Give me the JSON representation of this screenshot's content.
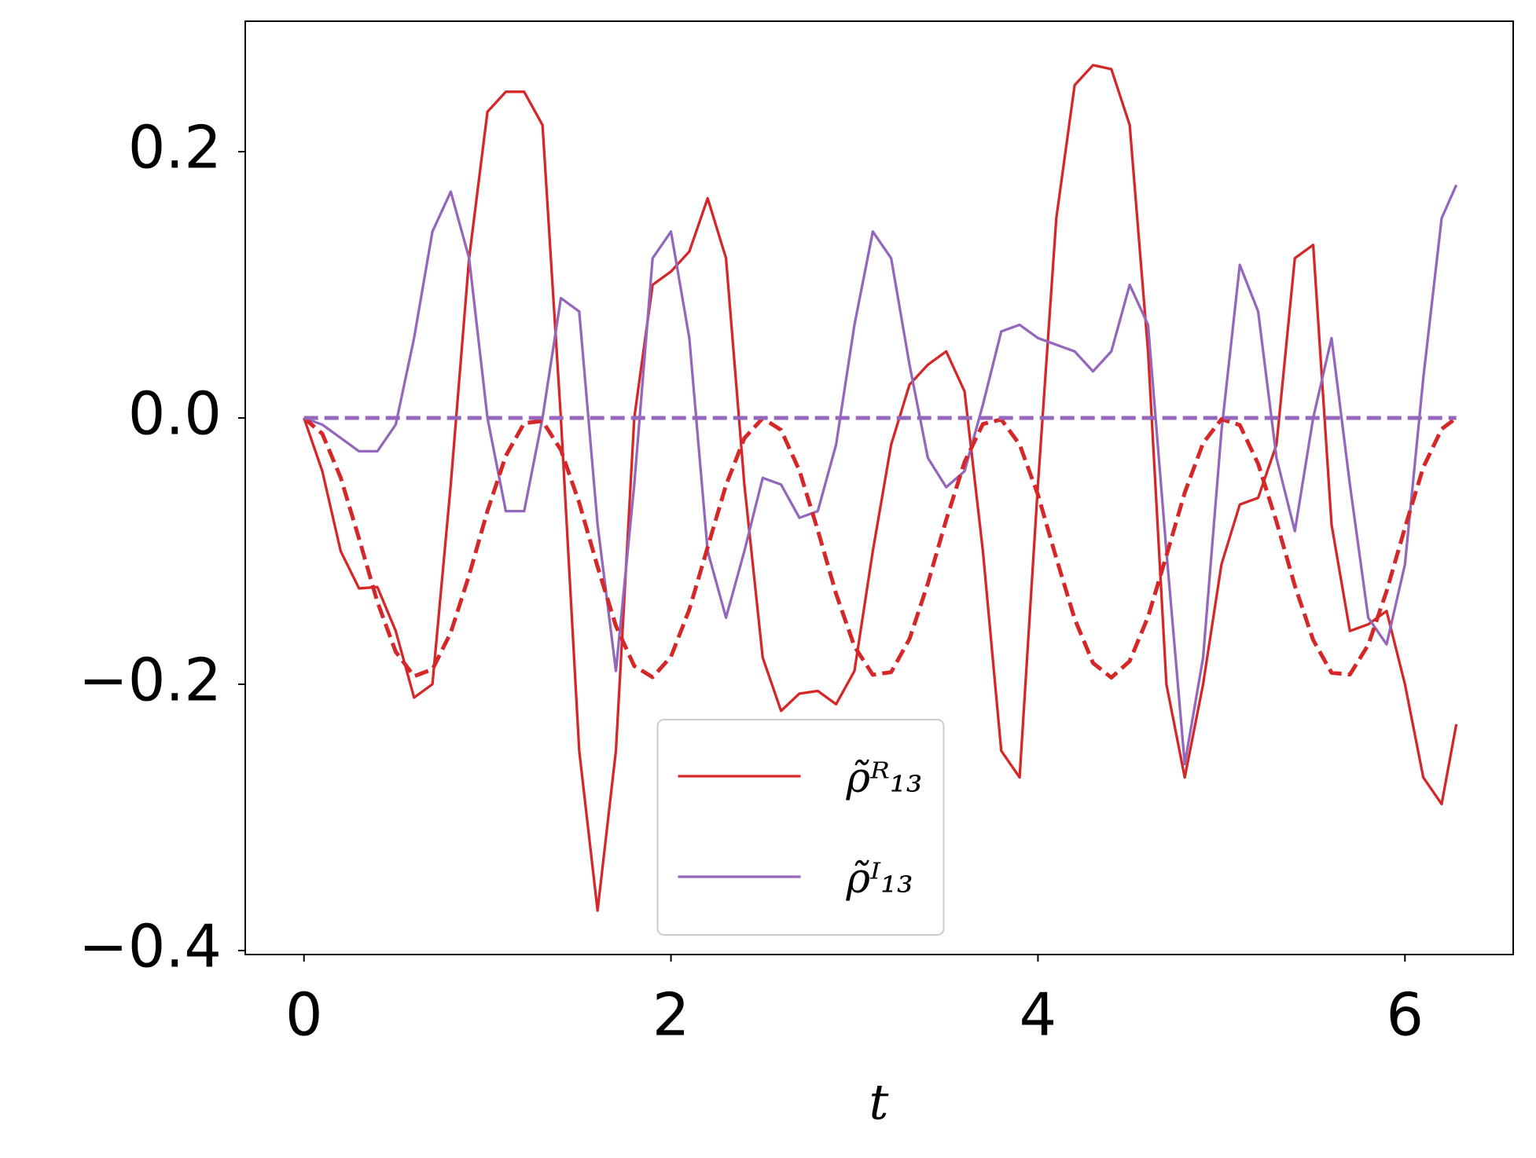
{
  "chart_data": {
    "type": "line",
    "x_label": "t",
    "x": [
      0,
      0.1,
      0.2,
      0.3,
      0.4,
      0.5,
      0.6,
      0.7,
      0.8,
      0.9,
      1.0,
      1.1,
      1.2,
      1.3,
      1.4,
      1.5,
      1.6,
      1.7,
      1.8,
      1.9,
      2.0,
      2.1,
      2.2,
      2.3,
      2.4,
      2.5,
      2.6,
      2.7,
      2.8,
      2.9,
      3.0,
      3.1,
      3.2,
      3.3,
      3.4,
      3.5,
      3.6,
      3.7,
      3.8,
      3.9,
      4.0,
      4.1,
      4.2,
      4.3,
      4.4,
      4.5,
      4.6,
      4.7,
      4.8,
      4.9,
      5.0,
      5.1,
      5.2,
      5.3,
      5.4,
      5.5,
      5.6,
      5.7,
      5.8,
      5.9,
      6.0,
      6.1,
      6.2,
      6.28
    ],
    "series": [
      {
        "name": "ρ̃ᴿ₁₃",
        "color": "#d62728",
        "linestyle": "solid",
        "values": [
          0,
          -0.04,
          -0.1,
          -0.128,
          -0.127,
          -0.16,
          -0.21,
          -0.2,
          -0.05,
          0.12,
          0.23,
          0.245,
          0.245,
          0.22,
          0.0,
          -0.25,
          -0.37,
          -0.25,
          0.0,
          0.1,
          0.11,
          0.125,
          0.165,
          0.12,
          -0.05,
          -0.18,
          -0.22,
          -0.207,
          -0.205,
          -0.215,
          -0.19,
          -0.1,
          -0.02,
          0.025,
          0.04,
          0.05,
          0.02,
          -0.1,
          -0.25,
          -0.27,
          -0.05,
          0.15,
          0.25,
          0.265,
          0.262,
          0.22,
          0.05,
          -0.2,
          -0.27,
          -0.2,
          -0.11,
          -0.065,
          -0.06,
          -0.02,
          0.12,
          0.13,
          -0.08,
          -0.16,
          -0.155,
          -0.145,
          -0.2,
          -0.27,
          -0.29,
          -0.23
        ]
      },
      {
        "name": "ρ̃ᴵ₁₃",
        "color": "#9467bd",
        "linestyle": "solid",
        "values": [
          0,
          -0.005,
          -0.015,
          -0.025,
          -0.025,
          -0.005,
          0.06,
          0.14,
          0.17,
          0.12,
          0.0,
          -0.07,
          -0.07,
          0.0,
          0.09,
          0.08,
          -0.08,
          -0.19,
          -0.05,
          0.12,
          0.14,
          0.06,
          -0.1,
          -0.15,
          -0.1,
          -0.045,
          -0.05,
          -0.075,
          -0.07,
          -0.02,
          0.07,
          0.14,
          0.12,
          0.04,
          -0.03,
          -0.052,
          -0.04,
          0.01,
          0.065,
          0.07,
          0.06,
          0.055,
          0.05,
          0.035,
          0.05,
          0.1,
          0.07,
          -0.1,
          -0.26,
          -0.18,
          -0.01,
          0.115,
          0.08,
          -0.03,
          -0.085,
          0.0,
          0.06,
          -0.05,
          -0.15,
          -0.17,
          -0.11,
          0.03,
          0.15,
          0.175
        ]
      },
      {
        "color": "#d62728",
        "linestyle": "dashed",
        "values": [
          0,
          -0.0119,
          -0.0448,
          -0.0906,
          -0.1381,
          -0.1756,
          -0.194,
          -0.1888,
          -0.1612,
          -0.1181,
          -0.0698,
          -0.0284,
          -0.0039,
          -0.0023,
          -0.024,
          -0.0637,
          -0.1117,
          -0.1562,
          -0.1863,
          -0.1947,
          -0.1793,
          -0.1439,
          -0.0971,
          -0.0504,
          -0.0152,
          -0.0002,
          -0.009,
          -0.0395,
          -0.0842,
          -0.1321,
          -0.1716,
          -0.1929,
          -0.1909,
          -0.166,
          -0.1243,
          -0.0765,
          -0.0331,
          -0.0045,
          -0.0011,
          -0.0199,
          -0.0577,
          -0.1053,
          -0.1509,
          -0.184,
          -0.195,
          -0.1826,
          -0.1494,
          -0.1035,
          -0.0561,
          -0.0189,
          -0.0009,
          -0.0053,
          -0.0344,
          -0.0779,
          -0.126,
          -0.1668,
          -0.1914,
          -0.1927,
          -0.1704,
          -0.1301,
          -0.0825,
          -0.0371,
          -0.0083,
          0
        ]
      },
      {
        "color": "#9467bd",
        "linestyle": "dashed",
        "values": [
          0,
          0,
          0,
          0,
          0,
          0,
          0,
          0,
          0,
          0,
          0,
          0,
          0,
          0,
          0,
          0,
          0,
          0,
          0,
          0,
          0,
          0,
          0,
          0,
          0,
          0,
          0,
          0,
          0,
          0,
          0,
          0,
          0,
          0,
          0,
          0,
          0,
          0,
          0,
          0,
          0,
          0,
          0,
          0,
          0,
          0,
          0,
          0,
          0,
          0,
          0,
          0,
          0,
          0,
          0,
          0,
          0,
          0,
          0,
          0,
          0,
          0,
          0,
          0
        ]
      }
    ],
    "xlim": [
      -0.32,
      6.59
    ],
    "ylim": [
      -0.403,
      0.298
    ],
    "xticks": [
      0,
      2,
      4,
      6
    ],
    "yticks": [
      {
        "value": -0.4,
        "label": "−0.4"
      },
      {
        "value": -0.2,
        "label": "−0.2"
      },
      {
        "value": 0,
        "label": "0.0"
      },
      0.2
    ],
    "grid": false,
    "legend": "lower center"
  }
}
